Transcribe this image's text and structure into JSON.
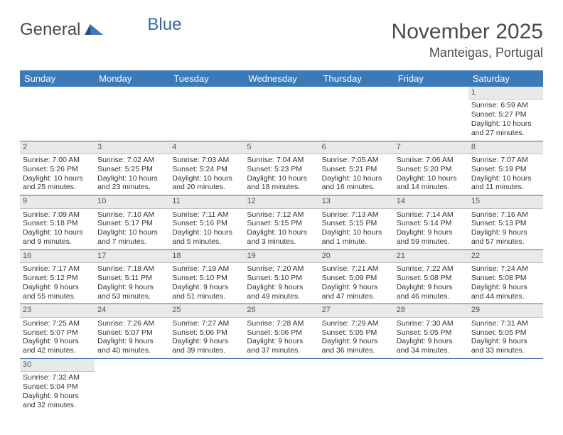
{
  "logo": {
    "general": "General",
    "blue": "Blue"
  },
  "title": "November 2025",
  "location": "Manteigas, Portugal",
  "colors": {
    "header_bg": "#3a7ab8",
    "header_text": "#ffffff",
    "daynum_bg": "#e9e9e9",
    "week_border": "#2f6aad",
    "logo_blue": "#2f6aad",
    "text": "#333333",
    "page_bg": "#ffffff"
  },
  "weekdays": [
    "Sunday",
    "Monday",
    "Tuesday",
    "Wednesday",
    "Thursday",
    "Friday",
    "Saturday"
  ],
  "weeks": [
    [
      null,
      null,
      null,
      null,
      null,
      null,
      {
        "n": "1",
        "sr": "Sunrise: 6:59 AM",
        "ss": "Sunset: 5:27 PM",
        "d1": "Daylight: 10 hours",
        "d2": "and 27 minutes."
      }
    ],
    [
      {
        "n": "2",
        "sr": "Sunrise: 7:00 AM",
        "ss": "Sunset: 5:26 PM",
        "d1": "Daylight: 10 hours",
        "d2": "and 25 minutes."
      },
      {
        "n": "3",
        "sr": "Sunrise: 7:02 AM",
        "ss": "Sunset: 5:25 PM",
        "d1": "Daylight: 10 hours",
        "d2": "and 23 minutes."
      },
      {
        "n": "4",
        "sr": "Sunrise: 7:03 AM",
        "ss": "Sunset: 5:24 PM",
        "d1": "Daylight: 10 hours",
        "d2": "and 20 minutes."
      },
      {
        "n": "5",
        "sr": "Sunrise: 7:04 AM",
        "ss": "Sunset: 5:23 PM",
        "d1": "Daylight: 10 hours",
        "d2": "and 18 minutes."
      },
      {
        "n": "6",
        "sr": "Sunrise: 7:05 AM",
        "ss": "Sunset: 5:21 PM",
        "d1": "Daylight: 10 hours",
        "d2": "and 16 minutes."
      },
      {
        "n": "7",
        "sr": "Sunrise: 7:06 AM",
        "ss": "Sunset: 5:20 PM",
        "d1": "Daylight: 10 hours",
        "d2": "and 14 minutes."
      },
      {
        "n": "8",
        "sr": "Sunrise: 7:07 AM",
        "ss": "Sunset: 5:19 PM",
        "d1": "Daylight: 10 hours",
        "d2": "and 11 minutes."
      }
    ],
    [
      {
        "n": "9",
        "sr": "Sunrise: 7:09 AM",
        "ss": "Sunset: 5:18 PM",
        "d1": "Daylight: 10 hours",
        "d2": "and 9 minutes."
      },
      {
        "n": "10",
        "sr": "Sunrise: 7:10 AM",
        "ss": "Sunset: 5:17 PM",
        "d1": "Daylight: 10 hours",
        "d2": "and 7 minutes."
      },
      {
        "n": "11",
        "sr": "Sunrise: 7:11 AM",
        "ss": "Sunset: 5:16 PM",
        "d1": "Daylight: 10 hours",
        "d2": "and 5 minutes."
      },
      {
        "n": "12",
        "sr": "Sunrise: 7:12 AM",
        "ss": "Sunset: 5:15 PM",
        "d1": "Daylight: 10 hours",
        "d2": "and 3 minutes."
      },
      {
        "n": "13",
        "sr": "Sunrise: 7:13 AM",
        "ss": "Sunset: 5:15 PM",
        "d1": "Daylight: 10 hours",
        "d2": "and 1 minute."
      },
      {
        "n": "14",
        "sr": "Sunrise: 7:14 AM",
        "ss": "Sunset: 5:14 PM",
        "d1": "Daylight: 9 hours",
        "d2": "and 59 minutes."
      },
      {
        "n": "15",
        "sr": "Sunrise: 7:16 AM",
        "ss": "Sunset: 5:13 PM",
        "d1": "Daylight: 9 hours",
        "d2": "and 57 minutes."
      }
    ],
    [
      {
        "n": "16",
        "sr": "Sunrise: 7:17 AM",
        "ss": "Sunset: 5:12 PM",
        "d1": "Daylight: 9 hours",
        "d2": "and 55 minutes."
      },
      {
        "n": "17",
        "sr": "Sunrise: 7:18 AM",
        "ss": "Sunset: 5:11 PM",
        "d1": "Daylight: 9 hours",
        "d2": "and 53 minutes."
      },
      {
        "n": "18",
        "sr": "Sunrise: 7:19 AM",
        "ss": "Sunset: 5:10 PM",
        "d1": "Daylight: 9 hours",
        "d2": "and 51 minutes."
      },
      {
        "n": "19",
        "sr": "Sunrise: 7:20 AM",
        "ss": "Sunset: 5:10 PM",
        "d1": "Daylight: 9 hours",
        "d2": "and 49 minutes."
      },
      {
        "n": "20",
        "sr": "Sunrise: 7:21 AM",
        "ss": "Sunset: 5:09 PM",
        "d1": "Daylight: 9 hours",
        "d2": "and 47 minutes."
      },
      {
        "n": "21",
        "sr": "Sunrise: 7:22 AM",
        "ss": "Sunset: 5:08 PM",
        "d1": "Daylight: 9 hours",
        "d2": "and 46 minutes."
      },
      {
        "n": "22",
        "sr": "Sunrise: 7:24 AM",
        "ss": "Sunset: 5:08 PM",
        "d1": "Daylight: 9 hours",
        "d2": "and 44 minutes."
      }
    ],
    [
      {
        "n": "23",
        "sr": "Sunrise: 7:25 AM",
        "ss": "Sunset: 5:07 PM",
        "d1": "Daylight: 9 hours",
        "d2": "and 42 minutes."
      },
      {
        "n": "24",
        "sr": "Sunrise: 7:26 AM",
        "ss": "Sunset: 5:07 PM",
        "d1": "Daylight: 9 hours",
        "d2": "and 40 minutes."
      },
      {
        "n": "25",
        "sr": "Sunrise: 7:27 AM",
        "ss": "Sunset: 5:06 PM",
        "d1": "Daylight: 9 hours",
        "d2": "and 39 minutes."
      },
      {
        "n": "26",
        "sr": "Sunrise: 7:28 AM",
        "ss": "Sunset: 5:06 PM",
        "d1": "Daylight: 9 hours",
        "d2": "and 37 minutes."
      },
      {
        "n": "27",
        "sr": "Sunrise: 7:29 AM",
        "ss": "Sunset: 5:05 PM",
        "d1": "Daylight: 9 hours",
        "d2": "and 36 minutes."
      },
      {
        "n": "28",
        "sr": "Sunrise: 7:30 AM",
        "ss": "Sunset: 5:05 PM",
        "d1": "Daylight: 9 hours",
        "d2": "and 34 minutes."
      },
      {
        "n": "29",
        "sr": "Sunrise: 7:31 AM",
        "ss": "Sunset: 5:05 PM",
        "d1": "Daylight: 9 hours",
        "d2": "and 33 minutes."
      }
    ],
    [
      {
        "n": "30",
        "sr": "Sunrise: 7:32 AM",
        "ss": "Sunset: 5:04 PM",
        "d1": "Daylight: 9 hours",
        "d2": "and 32 minutes."
      },
      null,
      null,
      null,
      null,
      null,
      null
    ]
  ]
}
